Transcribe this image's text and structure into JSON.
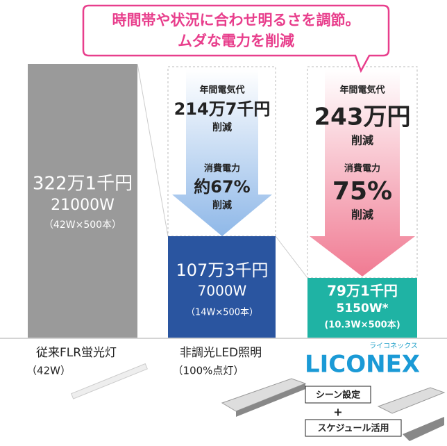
{
  "callout": {
    "line1": "時間帯や状況に合わせ明るさを調節。",
    "line2": "ムダな電力を削減"
  },
  "columns": [
    {
      "bar": {
        "cost": "322万1千円",
        "power": "21000W",
        "detail": "（42W×500本）"
      },
      "label": {
        "name": "従来FLR蛍光灯",
        "sub": "（42W）"
      }
    },
    {
      "arrow": {
        "cost_title": "年間電気代",
        "cost": "214万7千円",
        "cost_note": "削減",
        "power_title": "消費電力",
        "power": "約67%",
        "power_note": "削減"
      },
      "bar": {
        "cost": "107万3千円",
        "power": "7000W",
        "detail": "（14W×500本）"
      },
      "label": {
        "name": "非調光LED照明",
        "sub": "（100%点灯）"
      }
    },
    {
      "arrow": {
        "cost_title": "年間電気代",
        "cost": "243万円",
        "cost_note": "削減",
        "power_title": "消費電力",
        "power": "75%",
        "power_note": "削減"
      },
      "bar": {
        "cost": "79万1千円",
        "power": "5150W*",
        "detail": "(10.3W×500本)"
      },
      "label": {
        "logo": "LICONEX",
        "logo_kana": "ライコネックス",
        "feature1": "シーン設定",
        "plus": "+",
        "feature2": "スケジュール活用"
      }
    }
  ]
}
